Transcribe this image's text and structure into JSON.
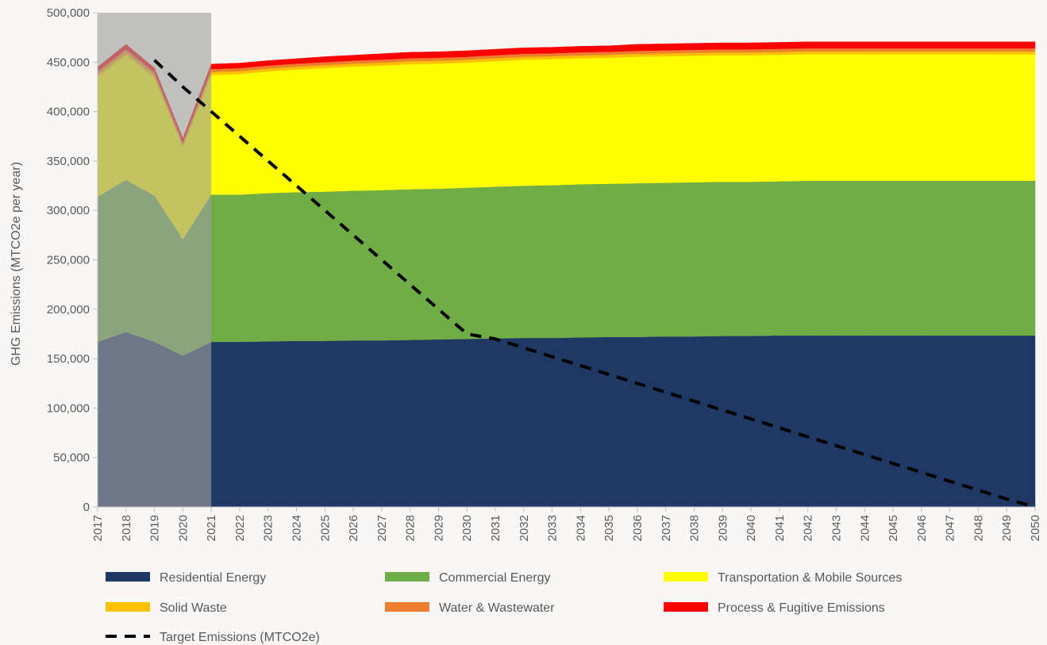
{
  "chart_data": {
    "type": "area",
    "ylabel": "GHG Emissions (MTCO2e per year)",
    "xlabel": "",
    "ylim": [
      0,
      500000
    ],
    "y_ticks": [
      0,
      50000,
      100000,
      150000,
      200000,
      250000,
      300000,
      350000,
      400000,
      450000,
      500000
    ],
    "y_tick_labels": [
      "0",
      "50,000",
      "100,000",
      "150,000",
      "200,000",
      "250,000",
      "300,000",
      "350,000",
      "400,000",
      "450,000",
      "500,000"
    ],
    "x": [
      2017,
      2018,
      2019,
      2020,
      2021,
      2022,
      2023,
      2024,
      2025,
      2026,
      2027,
      2028,
      2029,
      2030,
      2031,
      2032,
      2033,
      2034,
      2035,
      2036,
      2037,
      2038,
      2039,
      2040,
      2041,
      2042,
      2043,
      2044,
      2045,
      2046,
      2047,
      2048,
      2049,
      2050
    ],
    "historical_shaded_range": [
      2017,
      2021
    ],
    "stacked": true,
    "grid": false,
    "legend_position": "bottom",
    "series": [
      {
        "name": "Residential Energy",
        "color": "#1f3864",
        "values": [
          167000,
          177000,
          167000,
          153000,
          167000,
          167000,
          167500,
          168000,
          168000,
          168500,
          168500,
          169000,
          169500,
          170000,
          170500,
          171000,
          171000,
          171500,
          172000,
          172000,
          172500,
          172500,
          173000,
          173000,
          173500,
          173500,
          173500,
          173500,
          173500,
          173500,
          173500,
          173500,
          173500,
          173500
        ]
      },
      {
        "name": "Commercial Energy",
        "color": "#70ad47",
        "values": [
          147000,
          154000,
          148000,
          118000,
          149000,
          149000,
          150000,
          150500,
          151000,
          151500,
          152000,
          152500,
          152500,
          153000,
          153500,
          154000,
          154500,
          155000,
          155000,
          155500,
          155500,
          156000,
          156000,
          156000,
          156000,
          156500,
          156500,
          156500,
          156500,
          156500,
          156500,
          156500,
          156500,
          156500
        ]
      },
      {
        "name": "Transportation & Mobile Sources",
        "color": "#ffff00",
        "values": [
          121000,
          126000,
          119000,
          93000,
          121000,
          122000,
          123000,
          124000,
          125000,
          125500,
          126000,
          126500,
          126500,
          126500,
          127000,
          127500,
          127500,
          127500,
          127500,
          128000,
          128000,
          128000,
          128000,
          128000,
          128000,
          128000,
          128000,
          128000,
          128000,
          128000,
          128000,
          128000,
          128000,
          128000
        ]
      },
      {
        "name": "Solid Waste",
        "color": "#ffc000",
        "values": [
          3000,
          3000,
          3000,
          2500,
          3000,
          3000,
          3000,
          3000,
          3000,
          3000,
          3000,
          3000,
          3000,
          3000,
          3000,
          3000,
          3000,
          3000,
          3000,
          3000,
          3000,
          3000,
          3000,
          3000,
          3000,
          3000,
          3000,
          3000,
          3000,
          3000,
          3000,
          3000,
          3000,
          3000
        ]
      },
      {
        "name": "Water & Wastewater",
        "color": "#ed7d31",
        "values": [
          3000,
          3000,
          3000,
          2500,
          3000,
          3000,
          3000,
          3000,
          3000,
          3000,
          3000,
          3000,
          3000,
          3000,
          3000,
          3000,
          3000,
          3000,
          3000,
          3000,
          3000,
          3000,
          3000,
          3000,
          3000,
          3000,
          3000,
          3000,
          3000,
          3000,
          3000,
          3000,
          3000,
          3000
        ]
      },
      {
        "name": "Process & Fugitive Emissions",
        "color": "#ff0000",
        "values": [
          4000,
          5000,
          4000,
          4000,
          5000,
          5000,
          5000,
          5000,
          5500,
          5500,
          6000,
          6000,
          6000,
          6000,
          6000,
          6000,
          6000,
          6000,
          6000,
          6500,
          6500,
          6500,
          6500,
          6500,
          6500,
          6500,
          6500,
          6500,
          6500,
          6500,
          6500,
          6500,
          6500,
          6500
        ]
      }
    ],
    "target_series": {
      "name": "Target Emissions (MTCO2e)",
      "color": "#000000",
      "style": "dashed",
      "x": [
        2019,
        2020,
        2021,
        2022,
        2023,
        2024,
        2025,
        2026,
        2027,
        2028,
        2029,
        2030,
        2031,
        2032,
        2033,
        2034,
        2035,
        2036,
        2037,
        2038,
        2039,
        2040,
        2041,
        2042,
        2043,
        2044,
        2045,
        2046,
        2047,
        2048,
        2049,
        2050
      ],
      "values": [
        452000,
        425000,
        400000,
        375000,
        350000,
        325000,
        300000,
        275000,
        250000,
        225000,
        200000,
        175000,
        170000,
        161000,
        152000,
        143000,
        134000,
        125000,
        116000,
        107000,
        98000,
        89000,
        80000,
        71000,
        62000,
        53000,
        44000,
        35000,
        26000,
        17000,
        8000,
        0
      ]
    }
  }
}
